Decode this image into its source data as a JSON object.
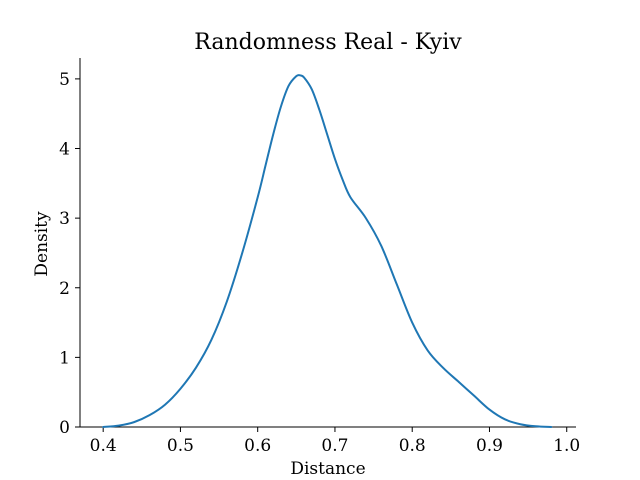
{
  "chart_data": {
    "type": "line",
    "title": "Randomness Real - Kyiv",
    "xlabel": "Distance",
    "ylabel": "Density",
    "xlim": [
      0.37,
      1.012
    ],
    "ylim": [
      0,
      5.3
    ],
    "xticks": [
      0.4,
      0.5,
      0.6,
      0.7,
      0.8,
      0.9,
      1.0
    ],
    "xtick_labels": [
      "0.4",
      "0.5",
      "0.6",
      "0.7",
      "0.8",
      "0.9",
      "1.0"
    ],
    "yticks": [
      0,
      1,
      2,
      3,
      4,
      5
    ],
    "ytick_labels": [
      "0",
      "1",
      "2",
      "3",
      "4",
      "5"
    ],
    "grid": false,
    "series_color": "#1f77b4",
    "series": [
      {
        "x": [
          0.4,
          0.42,
          0.44,
          0.46,
          0.48,
          0.5,
          0.52,
          0.54,
          0.56,
          0.58,
          0.6,
          0.61,
          0.62,
          0.63,
          0.64,
          0.65,
          0.655,
          0.66,
          0.67,
          0.68,
          0.69,
          0.7,
          0.71,
          0.72,
          0.74,
          0.76,
          0.78,
          0.8,
          0.82,
          0.84,
          0.86,
          0.88,
          0.9,
          0.92,
          0.94,
          0.96,
          0.98
        ],
        "y": [
          0.0,
          0.02,
          0.07,
          0.17,
          0.32,
          0.55,
          0.85,
          1.25,
          1.8,
          2.5,
          3.3,
          3.75,
          4.2,
          4.6,
          4.9,
          5.04,
          5.05,
          5.02,
          4.85,
          4.55,
          4.2,
          3.85,
          3.55,
          3.3,
          3.0,
          2.6,
          2.05,
          1.5,
          1.1,
          0.85,
          0.65,
          0.45,
          0.25,
          0.11,
          0.04,
          0.01,
          0.0
        ]
      }
    ]
  }
}
